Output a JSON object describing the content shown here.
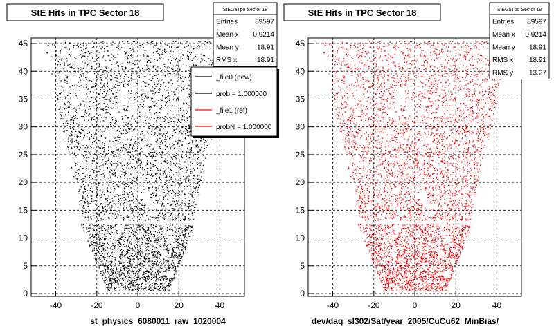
{
  "panels": [
    {
      "title": "StE Hits in TPC Sector 18",
      "stats": {
        "name": "StEGaTpo Sector 18",
        "rows": [
          {
            "label": "Entries",
            "value": "89597"
          },
          {
            "label": "Mean x",
            "value": "0.9214"
          },
          {
            "label": "Mean y",
            "value": "18.91"
          },
          {
            "label": "RMS x",
            "value": "18.91"
          }
        ]
      },
      "legend": [
        {
          "label": "_file0 (new)",
          "color": "#000000"
        },
        {
          "label": "prob = 1.000000",
          "color": "#000000"
        },
        {
          "label": "_file1 (ref)",
          "color": "#ff0000"
        },
        {
          "label": "probN = 1.000000",
          "color": "#ff0000"
        }
      ],
      "footer": "st_physics_6080011_raw_1020004"
    },
    {
      "title": "StE Hits in TPC Sector 18",
      "stats": {
        "name": "StEGaTpo Sector 18",
        "rows": [
          {
            "label": "Entries",
            "value": "89597"
          },
          {
            "label": "Mean x",
            "value": "0.9214"
          },
          {
            "label": "Mean y",
            "value": "18.91"
          },
          {
            "label": "RMS x",
            "value": "18.91"
          },
          {
            "label": "RMS y",
            "value": "13.27"
          }
        ]
      },
      "legend": [],
      "footer": "dev/daq_sl302/Sat/year_2005/CuCu62_MinBias/"
    }
  ],
  "chart_data": [
    {
      "type": "scatter",
      "title": "StE Hits in TPC Sector 18",
      "point_color": "#000000",
      "xlim": [
        -52,
        52
      ],
      "ylim": [
        -0.5,
        46
      ],
      "xticks": [
        -40,
        -20,
        0,
        20,
        40
      ],
      "yticks": [
        0,
        5,
        10,
        15,
        20,
        25,
        30,
        35,
        40,
        45
      ],
      "grid": true,
      "legend_placement": "top-right"
    },
    {
      "type": "scatter",
      "title": "StE Hits in TPC Sector 18",
      "point_color": "#ff0000",
      "xlim": [
        -52,
        52
      ],
      "ylim": [
        -0.5,
        46
      ],
      "xticks": [
        -40,
        -20,
        0,
        20,
        40
      ],
      "yticks": [
        0,
        5,
        10,
        15,
        20,
        25,
        30,
        35,
        40,
        45
      ],
      "grid": true,
      "legend_placement": "none"
    }
  ]
}
